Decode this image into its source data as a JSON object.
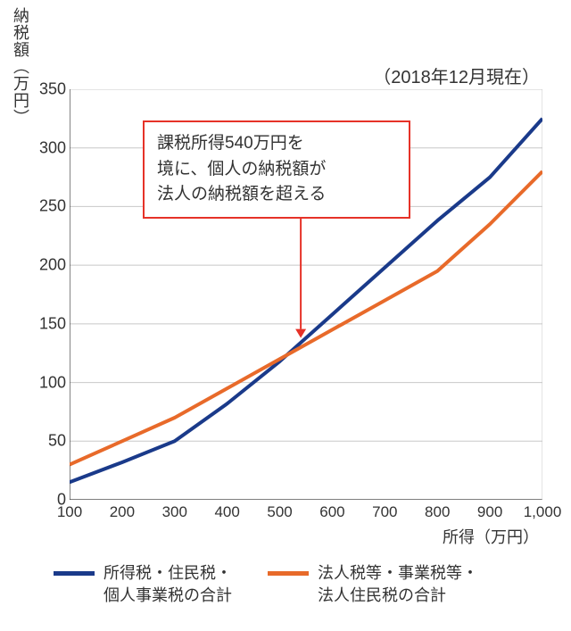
{
  "chart": {
    "type": "line",
    "y_axis_title": "納税額（万円）",
    "x_axis_title": "所得（万円）",
    "subtitle": "（2018年12月現在）",
    "xlim": [
      100,
      1000
    ],
    "ylim": [
      0,
      350
    ],
    "x_ticks": [
      100,
      200,
      300,
      400,
      500,
      600,
      700,
      800,
      900,
      1000
    ],
    "x_tick_labels": [
      "100",
      "200",
      "300",
      "400",
      "500",
      "600",
      "700",
      "800",
      "900",
      "1,000"
    ],
    "y_ticks": [
      0,
      50,
      100,
      150,
      200,
      250,
      300,
      350
    ],
    "y_tick_labels": [
      "0",
      "50",
      "100",
      "150",
      "200",
      "250",
      "300",
      "350"
    ],
    "grid_color": "#c8c8c8",
    "axis_color": "#333333",
    "background_color": "#ffffff",
    "line_width_axis": 1.2,
    "series": [
      {
        "name": "individual",
        "label": "所得税・住民税・\n個人事業税の合計",
        "color": "#1a3a8a",
        "line_width": 4,
        "x": [
          100,
          200,
          300,
          400,
          500,
          600,
          700,
          800,
          900,
          1000
        ],
        "y": [
          15,
          32,
          50,
          82,
          118,
          158,
          198,
          238,
          275,
          325
        ]
      },
      {
        "name": "corporate",
        "label": "法人税等・事業税等・\n法人住民税の合計",
        "color": "#e86a2a",
        "line_width": 4,
        "x": [
          100,
          200,
          300,
          400,
          500,
          600,
          700,
          800,
          900,
          1000
        ],
        "y": [
          30,
          50,
          70,
          95,
          120,
          145,
          170,
          195,
          235,
          280
        ]
      }
    ],
    "annotation": {
      "text_lines": [
        "課税所得540万円を",
        "境に、個人の納税額が",
        "法人の納税額を超える"
      ],
      "border_color": "#e63228",
      "arrow_color": "#e63228",
      "arrow_target_x": 540,
      "arrow_target_y": 138
    }
  }
}
